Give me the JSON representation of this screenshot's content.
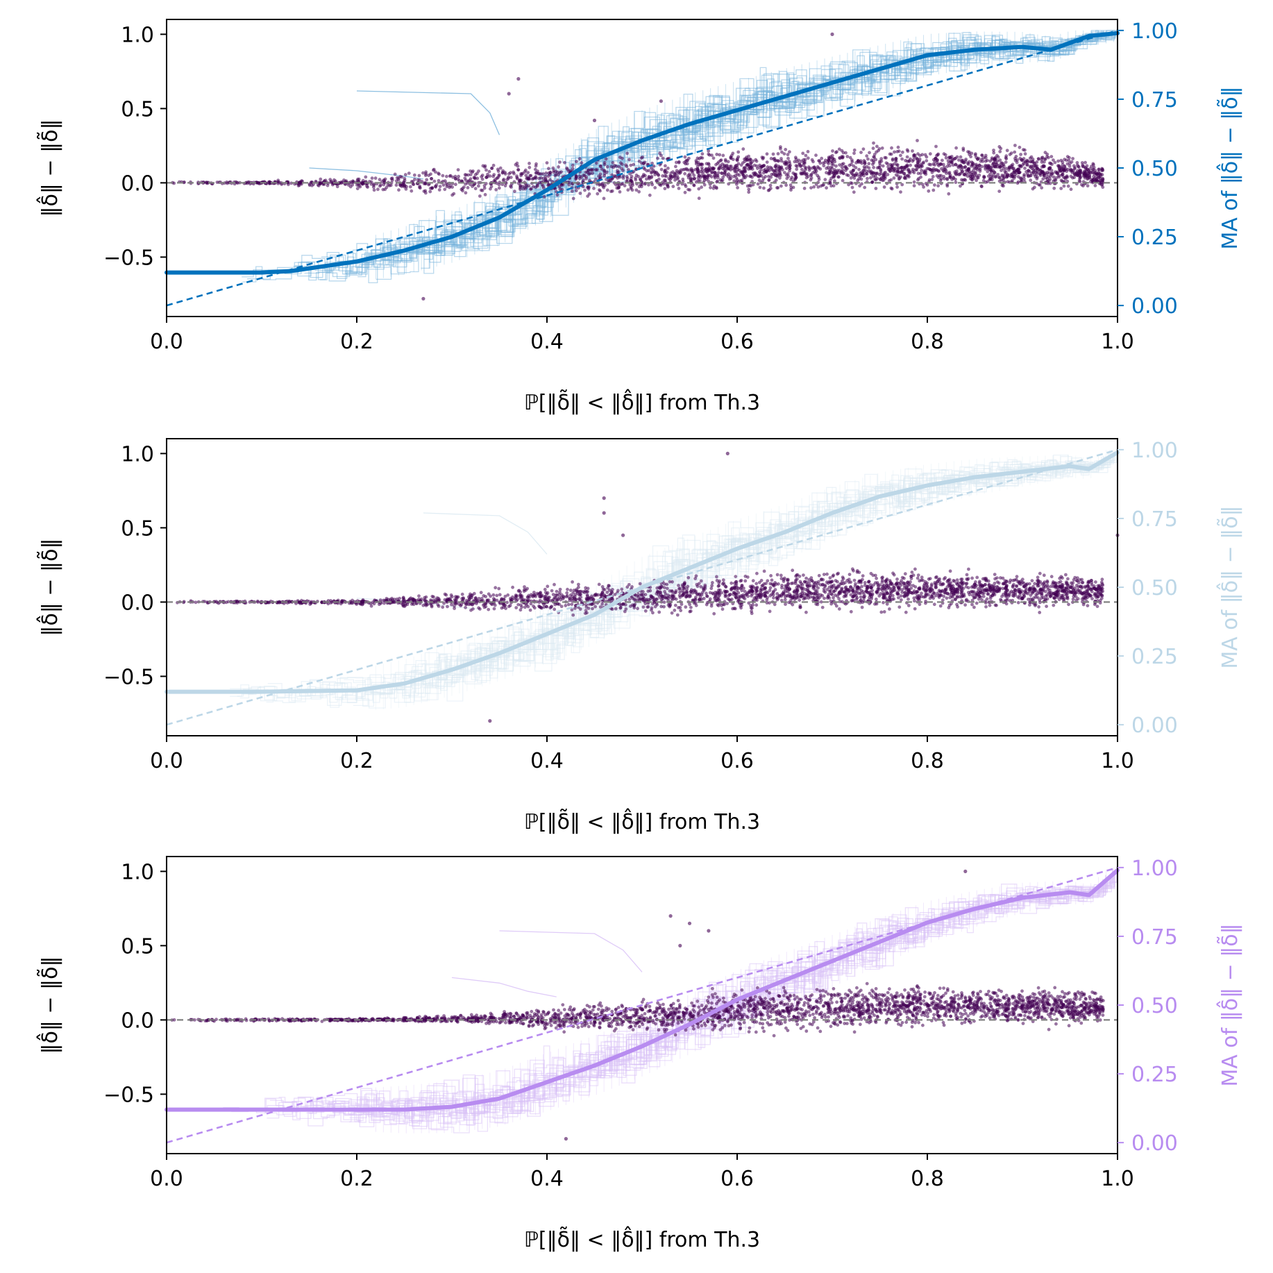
{
  "chart_data": [
    {
      "type": "scatter",
      "panel": "top",
      "accent_color": "#0072bd",
      "point_color": "#440154",
      "xlabel": "ℙ[‖δ̃‖ < ‖δ̂‖] from Th.3",
      "ylabel": "‖δ̂‖ − ‖δ̃‖",
      "y2label": "MA of ‖δ̂‖ − ‖δ̃‖",
      "xlim": [
        0.0,
        1.0
      ],
      "ylim": [
        -0.9,
        1.1
      ],
      "y2lim": [
        -0.04,
        1.04
      ],
      "xticks": [
        "0.0",
        "0.2",
        "0.4",
        "0.6",
        "0.8",
        "1.0"
      ],
      "yticks": [
        "−0.5",
        "0.0",
        "0.5",
        "1.0"
      ],
      "y2ticks": [
        "0.00",
        "0.25",
        "0.50",
        "0.75",
        "1.00"
      ],
      "reference_line": {
        "x": [
          0.0,
          1.0
        ],
        "y2": [
          0.0,
          1.0
        ]
      },
      "zero_line": 0.0,
      "moving_average": {
        "x": [
          0.0,
          0.1,
          0.13,
          0.2,
          0.25,
          0.3,
          0.35,
          0.4,
          0.45,
          0.5,
          0.55,
          0.6,
          0.65,
          0.7,
          0.75,
          0.8,
          0.85,
          0.9,
          0.93,
          0.97,
          1.0
        ],
        "y2": [
          0.12,
          0.12,
          0.125,
          0.16,
          0.2,
          0.25,
          0.32,
          0.42,
          0.53,
          0.6,
          0.66,
          0.71,
          0.76,
          0.81,
          0.86,
          0.91,
          0.93,
          0.94,
          0.93,
          0.98,
          0.99
        ]
      },
      "scatter_spread": {
        "x": [
          0.0,
          0.1,
          0.2,
          0.25,
          0.3,
          0.4,
          0.5,
          0.6,
          0.7,
          0.8,
          0.9,
          0.98
        ],
        "low": [
          -0.01,
          -0.01,
          -0.04,
          -0.08,
          -0.09,
          -0.1,
          -0.1,
          -0.08,
          -0.07,
          -0.06,
          -0.06,
          -0.05
        ],
        "high": [
          0.01,
          0.01,
          0.04,
          0.08,
          0.12,
          0.16,
          0.2,
          0.24,
          0.26,
          0.27,
          0.25,
          0.15
        ]
      },
      "outliers": [
        {
          "x": 0.37,
          "y": 0.7
        },
        {
          "x": 0.27,
          "y": -0.78
        },
        {
          "x": 0.7,
          "y": 1.0
        },
        {
          "x": 0.36,
          "y": 0.6
        },
        {
          "x": 0.52,
          "y": 0.55
        },
        {
          "x": 0.45,
          "y": 0.42
        }
      ],
      "stray_segments": [
        {
          "x": [
            0.2,
            0.32,
            0.34,
            0.35
          ],
          "y2": [
            0.78,
            0.77,
            0.7,
            0.62
          ]
        },
        {
          "x": [
            0.15,
            0.2,
            0.25,
            0.27
          ],
          "y2": [
            0.5,
            0.49,
            0.47,
            0.46
          ]
        }
      ]
    },
    {
      "type": "scatter",
      "panel": "middle",
      "accent_color": "#bdd7e7",
      "point_color": "#440154",
      "xlabel": "ℙ[‖δ̃‖ < ‖δ̂‖] from Th.3",
      "ylabel": "‖δ̂‖ − ‖δ̃‖",
      "y2label": "MA of ‖δ̂‖ − ‖δ̃‖",
      "xlim": [
        0.0,
        1.0
      ],
      "ylim": [
        -0.9,
        1.1
      ],
      "y2lim": [
        -0.04,
        1.04
      ],
      "xticks": [
        "0.0",
        "0.2",
        "0.4",
        "0.6",
        "0.8",
        "1.0"
      ],
      "yticks": [
        "−0.5",
        "0.0",
        "0.5",
        "1.0"
      ],
      "y2ticks": [
        "0.00",
        "0.25",
        "0.50",
        "0.75",
        "1.00"
      ],
      "reference_line": {
        "x": [
          0.0,
          1.0
        ],
        "y2": [
          0.0,
          1.0
        ]
      },
      "zero_line": 0.0,
      "moving_average": {
        "x": [
          0.0,
          0.1,
          0.2,
          0.25,
          0.3,
          0.35,
          0.4,
          0.45,
          0.5,
          0.55,
          0.6,
          0.65,
          0.7,
          0.75,
          0.8,
          0.85,
          0.9,
          0.95,
          0.97,
          1.0
        ],
        "y2": [
          0.12,
          0.12,
          0.125,
          0.15,
          0.2,
          0.26,
          0.33,
          0.4,
          0.5,
          0.57,
          0.64,
          0.7,
          0.77,
          0.83,
          0.87,
          0.9,
          0.92,
          0.94,
          0.93,
          0.99
        ]
      },
      "scatter_spread": {
        "x": [
          0.0,
          0.1,
          0.2,
          0.3,
          0.35,
          0.4,
          0.5,
          0.6,
          0.7,
          0.8,
          0.9,
          1.0
        ],
        "low": [
          -0.01,
          -0.01,
          -0.02,
          -0.05,
          -0.07,
          -0.09,
          -0.1,
          -0.08,
          -0.06,
          -0.05,
          -0.04,
          -0.03
        ],
        "high": [
          0.01,
          0.01,
          0.02,
          0.06,
          0.09,
          0.12,
          0.16,
          0.2,
          0.22,
          0.22,
          0.2,
          0.18
        ]
      },
      "outliers": [
        {
          "x": 0.59,
          "y": 1.0
        },
        {
          "x": 0.34,
          "y": -0.8
        },
        {
          "x": 0.46,
          "y": 0.7
        },
        {
          "x": 0.46,
          "y": 0.6
        },
        {
          "x": 1.0,
          "y": 0.45
        },
        {
          "x": 0.48,
          "y": 0.45
        }
      ],
      "stray_segments": [
        {
          "x": [
            0.27,
            0.35,
            0.38,
            0.4
          ],
          "y2": [
            0.77,
            0.76,
            0.7,
            0.62
          ]
        },
        {
          "x": [
            0.2,
            0.25,
            0.3,
            0.33
          ],
          "y2": [
            0.46,
            0.45,
            0.43,
            0.42
          ]
        }
      ]
    },
    {
      "type": "scatter",
      "panel": "bottom",
      "accent_color": "#b88cf0",
      "point_color": "#440154",
      "xlabel": "ℙ[‖δ̃‖ < ‖δ̂‖] from Th.3",
      "ylabel": "‖δ̂‖ − ‖δ̃‖",
      "y2label": "MA of ‖δ̂‖ − ‖δ̃‖",
      "xlim": [
        0.0,
        1.0
      ],
      "ylim": [
        -0.9,
        1.1
      ],
      "y2lim": [
        -0.04,
        1.04
      ],
      "xticks": [
        "0.0",
        "0.2",
        "0.4",
        "0.6",
        "0.8",
        "1.0"
      ],
      "yticks": [
        "−0.5",
        "0.0",
        "0.5",
        "1.0"
      ],
      "y2ticks": [
        "0.00",
        "0.25",
        "0.50",
        "0.75",
        "1.00"
      ],
      "reference_line": {
        "x": [
          0.0,
          1.0
        ],
        "y2": [
          0.0,
          1.0
        ]
      },
      "zero_line": 0.0,
      "moving_average": {
        "x": [
          0.0,
          0.1,
          0.25,
          0.3,
          0.35,
          0.4,
          0.45,
          0.5,
          0.55,
          0.6,
          0.65,
          0.7,
          0.75,
          0.8,
          0.85,
          0.9,
          0.95,
          0.97,
          1.0
        ],
        "y2": [
          0.12,
          0.12,
          0.12,
          0.13,
          0.16,
          0.22,
          0.28,
          0.35,
          0.43,
          0.52,
          0.59,
          0.66,
          0.73,
          0.8,
          0.85,
          0.89,
          0.91,
          0.9,
          0.99
        ]
      },
      "scatter_spread": {
        "x": [
          0.0,
          0.1,
          0.2,
          0.3,
          0.35,
          0.4,
          0.5,
          0.6,
          0.7,
          0.8,
          0.9,
          1.0
        ],
        "low": [
          -0.01,
          -0.01,
          -0.01,
          -0.02,
          -0.04,
          -0.07,
          -0.09,
          -0.09,
          -0.07,
          -0.05,
          -0.04,
          -0.03
        ],
        "high": [
          0.01,
          0.01,
          0.01,
          0.03,
          0.06,
          0.09,
          0.14,
          0.19,
          0.23,
          0.24,
          0.22,
          0.2
        ]
      },
      "outliers": [
        {
          "x": 0.84,
          "y": 1.0
        },
        {
          "x": 0.42,
          "y": -0.8
        },
        {
          "x": 0.53,
          "y": 0.7
        },
        {
          "x": 0.55,
          "y": 0.65
        },
        {
          "x": 0.57,
          "y": 0.6
        },
        {
          "x": 0.54,
          "y": 0.5
        }
      ],
      "stray_segments": [
        {
          "x": [
            0.35,
            0.45,
            0.48,
            0.5
          ],
          "y2": [
            0.77,
            0.76,
            0.7,
            0.62
          ]
        },
        {
          "x": [
            0.3,
            0.35,
            0.38,
            0.41
          ],
          "y2": [
            0.6,
            0.58,
            0.55,
            0.53
          ]
        }
      ]
    }
  ]
}
